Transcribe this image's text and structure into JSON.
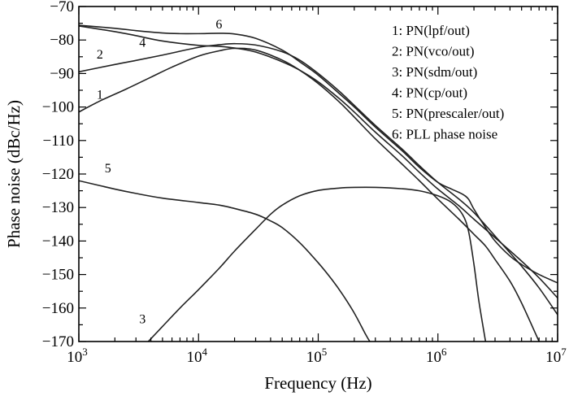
{
  "chart_data": {
    "type": "line",
    "title": "",
    "xlabel": "Frequency (Hz)",
    "ylabel": "Phase noise (dBc/Hz)",
    "x_scale": "log",
    "xlim": [
      1000,
      10000000
    ],
    "ylim": [
      -170,
      -70
    ],
    "x_ticks": [
      {
        "value": 1000,
        "base": "10",
        "exp": "3"
      },
      {
        "value": 10000,
        "base": "10",
        "exp": "4"
      },
      {
        "value": 100000,
        "base": "10",
        "exp": "5"
      },
      {
        "value": 1000000,
        "base": "10",
        "exp": "6"
      },
      {
        "value": 10000000,
        "base": "10",
        "exp": "7"
      }
    ],
    "y_ticks": [
      -70,
      -80,
      -90,
      -100,
      -110,
      -120,
      -130,
      -140,
      -150,
      -160,
      -170
    ],
    "y_tick_labels": [
      "−70",
      "−80",
      "−90",
      "−100",
      "−110",
      "−120",
      "−130",
      "−140",
      "−150",
      "−160",
      "−170"
    ],
    "grid": false,
    "legend_position": "top-right",
    "legend": [
      "1: PN(lpf/out)",
      "2: PN(vco/out)",
      "3: PN(sdm/out)",
      "4: PN(cp/out)",
      "5: PN(prescaler/out)",
      "6: PLL phase noise"
    ],
    "series": [
      {
        "label": "1",
        "x": [
          1000,
          1500,
          2500,
          4000,
          6000,
          10000,
          15000,
          20000,
          30000,
          50000,
          70000,
          100000,
          150000,
          200000,
          300000,
          500000,
          700000,
          1000000,
          1500000,
          2000000,
          2500000,
          3000000,
          4000000,
          5000000,
          7000000
        ],
        "y": [
          -101.5,
          -98.2,
          -94.6,
          -91.1,
          -88.1,
          -84.8,
          -83.2,
          -82.5,
          -83.0,
          -86.0,
          -89.0,
          -93.0,
          -98.5,
          -103.0,
          -109.5,
          -117.0,
          -122.0,
          -127.5,
          -133.5,
          -138.0,
          -141.5,
          -145.5,
          -152.0,
          -158.5,
          -170.0
        ]
      },
      {
        "label": "2",
        "x": [
          1000,
          2000,
          3000,
          5000,
          10000,
          15000,
          20000,
          30000,
          50000,
          70000,
          100000,
          150000,
          200000,
          300000,
          500000,
          700000,
          1000000,
          1500000,
          2000000,
          3000000,
          5000000,
          7000000,
          10000000
        ],
        "y": [
          -89.5,
          -87.3,
          -86.1,
          -84.5,
          -82.2,
          -81.4,
          -81.1,
          -81.5,
          -83.5,
          -86.0,
          -90.0,
          -95.3,
          -99.5,
          -105.5,
          -112.5,
          -117.5,
          -122.5,
          -127.5,
          -131.5,
          -138.5,
          -147.5,
          -154.0,
          -162.0
        ]
      },
      {
        "label": "3",
        "x": [
          3800,
          5000,
          7000,
          10000,
          15000,
          20000,
          30000,
          40000,
          50000,
          70000,
          100000,
          150000,
          200000,
          300000,
          500000,
          700000,
          1000000,
          1300000,
          1600000,
          1800000,
          2000000,
          2200000,
          2500000
        ],
        "y": [
          -170.0,
          -165.5,
          -160.0,
          -154.5,
          -148.0,
          -143.0,
          -136.5,
          -132.0,
          -129.3,
          -126.5,
          -124.9,
          -124.2,
          -124.0,
          -124.0,
          -124.4,
          -125.0,
          -126.5,
          -128.5,
          -132.0,
          -137.0,
          -147.0,
          -158.0,
          -170.0
        ]
      },
      {
        "label": "4",
        "x": [
          1000,
          2000,
          3000,
          5000,
          10000,
          15000,
          20000,
          30000,
          50000,
          70000,
          100000,
          150000,
          200000,
          300000,
          500000,
          700000,
          1000000,
          1500000,
          2000000,
          3000000,
          5000000,
          7000000,
          10000000
        ],
        "y": [
          -75.8,
          -77.5,
          -78.7,
          -80.3,
          -81.6,
          -81.9,
          -82.4,
          -83.6,
          -86.5,
          -89.0,
          -92.5,
          -97.5,
          -101.5,
          -107.5,
          -114.5,
          -119.5,
          -124.5,
          -129.5,
          -133.5,
          -139.0,
          -146.0,
          -151.0,
          -157.0
        ]
      },
      {
        "label": "5",
        "x": [
          1000,
          2000,
          3000,
          5000,
          10000,
          15000,
          20000,
          30000,
          40000,
          50000,
          70000,
          100000,
          130000,
          160000,
          200000,
          250000,
          270000
        ],
        "y": [
          -122.0,
          -124.5,
          -125.8,
          -127.2,
          -128.5,
          -129.3,
          -130.3,
          -132.0,
          -134.0,
          -136.0,
          -140.5,
          -146.5,
          -151.5,
          -156.0,
          -161.5,
          -168.0,
          -170.0
        ]
      },
      {
        "label": "6",
        "x": [
          1000,
          2000,
          3000,
          5000,
          7000,
          10000,
          15000,
          20000,
          30000,
          50000,
          70000,
          100000,
          150000,
          200000,
          300000,
          500000,
          700000,
          1000000,
          1300000,
          1600000,
          1800000,
          2000000,
          2500000,
          3000000,
          4000000,
          5000000,
          7000000,
          10000000
        ],
        "y": [
          -75.6,
          -76.5,
          -77.2,
          -77.9,
          -78.1,
          -78.1,
          -78.0,
          -78.2,
          -79.5,
          -83.0,
          -86.5,
          -90.5,
          -96.0,
          -100.0,
          -106.0,
          -113.0,
          -118.0,
          -122.5,
          -124.5,
          -126.0,
          -127.5,
          -130.5,
          -136.0,
          -140.0,
          -144.5,
          -147.0,
          -150.0,
          -152.5
        ]
      }
    ],
    "curve_labels": [
      {
        "text": "6",
        "x": 14800,
        "y": -76.5
      },
      {
        "text": "4",
        "x": 3400,
        "y": -82.0
      },
      {
        "text": "2",
        "x": 1500,
        "y": -85.5
      },
      {
        "text": "1",
        "x": 1500,
        "y": -97.5
      },
      {
        "text": "5",
        "x": 1750,
        "y": -119.5
      },
      {
        "text": "3",
        "x": 3400,
        "y": -164.5
      }
    ]
  }
}
